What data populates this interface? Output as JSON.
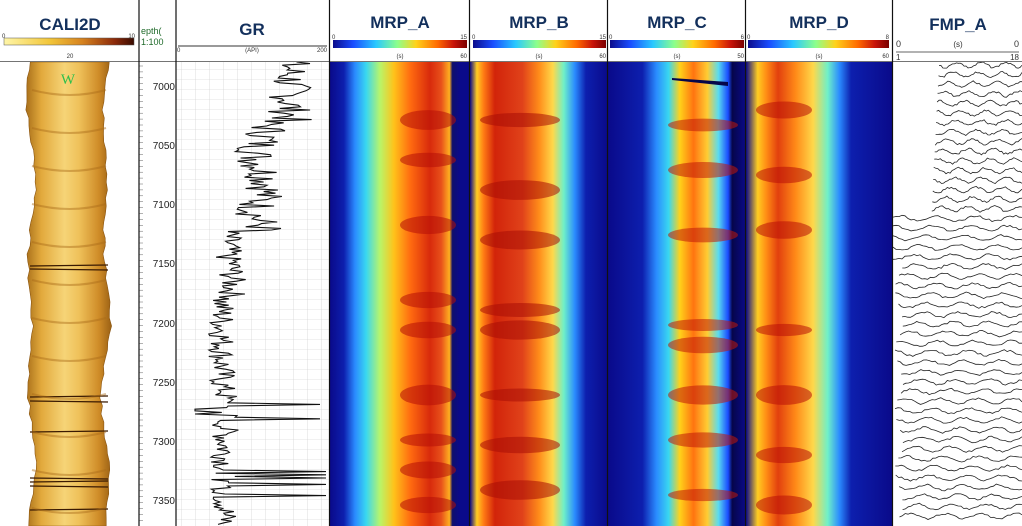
{
  "tracks": {
    "cali": {
      "title": "CALI2D",
      "scale_min": "0",
      "scale_mid": "20",
      "scale_max": "10",
      "marker": "W"
    },
    "depth": {
      "header_line1": "epth(",
      "header_line2": "1:100",
      "labels": [
        "7000",
        "7050",
        "7100",
        "7150",
        "7200",
        "7250",
        "7300",
        "7350"
      ]
    },
    "gr": {
      "title": "GR",
      "scale_min": "0",
      "scale_max": "200",
      "unit": "(API)"
    },
    "mrp_a": {
      "title": "MRP_A",
      "scale_min": "0",
      "scale_max": "15",
      "sub_unit": "(s)",
      "sub_max": "60"
    },
    "mrp_b": {
      "title": "MRP_B",
      "scale_min": "0",
      "scale_max": "15",
      "sub_unit": "(s)",
      "sub_max": "60"
    },
    "mrp_c": {
      "title": "MRP_C",
      "scale_min": "0",
      "scale_max": "6",
      "sub_unit": "(s)",
      "sub_max": "50"
    },
    "mrp_d": {
      "title": "MRP_D",
      "scale_min": "0",
      "scale_max": "8",
      "sub_unit": "(s)",
      "sub_max": "60"
    },
    "fmp": {
      "title": "FMP_A",
      "scale_min": "0",
      "scale_max": "0",
      "unit": "(s)",
      "lower_min": "1",
      "lower_max": "18"
    }
  },
  "colors": {
    "title": "#13305c",
    "cali_colormap": [
      "#fff6a8",
      "#f2c63a",
      "#d6831f",
      "#8c2a0a",
      "#3a0b00"
    ],
    "mrp_colormap": [
      "#0c0c8c",
      "#1a4dff",
      "#29c8ff",
      "#8cff8c",
      "#ffd21a",
      "#ff6a00",
      "#c8140a",
      "#7a0000"
    ]
  }
}
